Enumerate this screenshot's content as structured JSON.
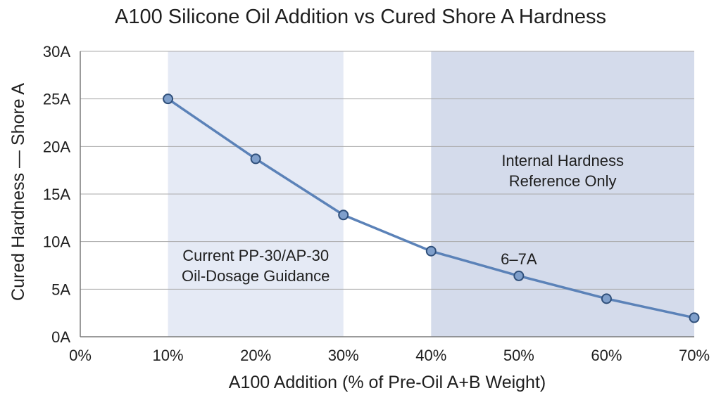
{
  "chart_data": {
    "type": "line",
    "title": "A100 Silicone Oil Addition vs Cured Shore A Hardness",
    "xlabel": "A100 Addition (% of Pre-Oil A+B Weight)",
    "ylabel": "Cured Hardness — Shore A",
    "x_ticks": [
      "0%",
      "10%",
      "20%",
      "30%",
      "40%",
      "50%",
      "60%",
      "70%"
    ],
    "y_ticks": [
      "0A",
      "5A",
      "10A",
      "15A",
      "20A",
      "25A",
      "30A"
    ],
    "xlim": [
      0,
      70
    ],
    "ylim": [
      0,
      30
    ],
    "grid": "horizontal",
    "series": [
      {
        "x": [
          10,
          20,
          30,
          40,
          50,
          60,
          70
        ],
        "values": [
          25,
          18.7,
          12.8,
          9.0,
          6.4,
          4.0,
          2.0
        ]
      }
    ],
    "bands": [
      {
        "x_range": [
          10,
          30
        ],
        "label_lines": [
          "Current PP-30/AP-30",
          "Oil-Dosage Guidance"
        ]
      },
      {
        "x_range": [
          40,
          70
        ],
        "label_lines": [
          "Internal Hardness",
          "Reference Only"
        ]
      }
    ],
    "annotations": [
      {
        "text": "6–7A",
        "x": 50,
        "y": 8.2
      }
    ],
    "colors": {
      "line": "#5b82b8",
      "marker_fill": "#7f9fcb",
      "marker_stroke": "#2f4f7a",
      "band_light": "#e5eaf5",
      "band_dark": "#d4dbeb",
      "grid": "#aaaaaa",
      "axis": "#7a7a7a"
    }
  }
}
